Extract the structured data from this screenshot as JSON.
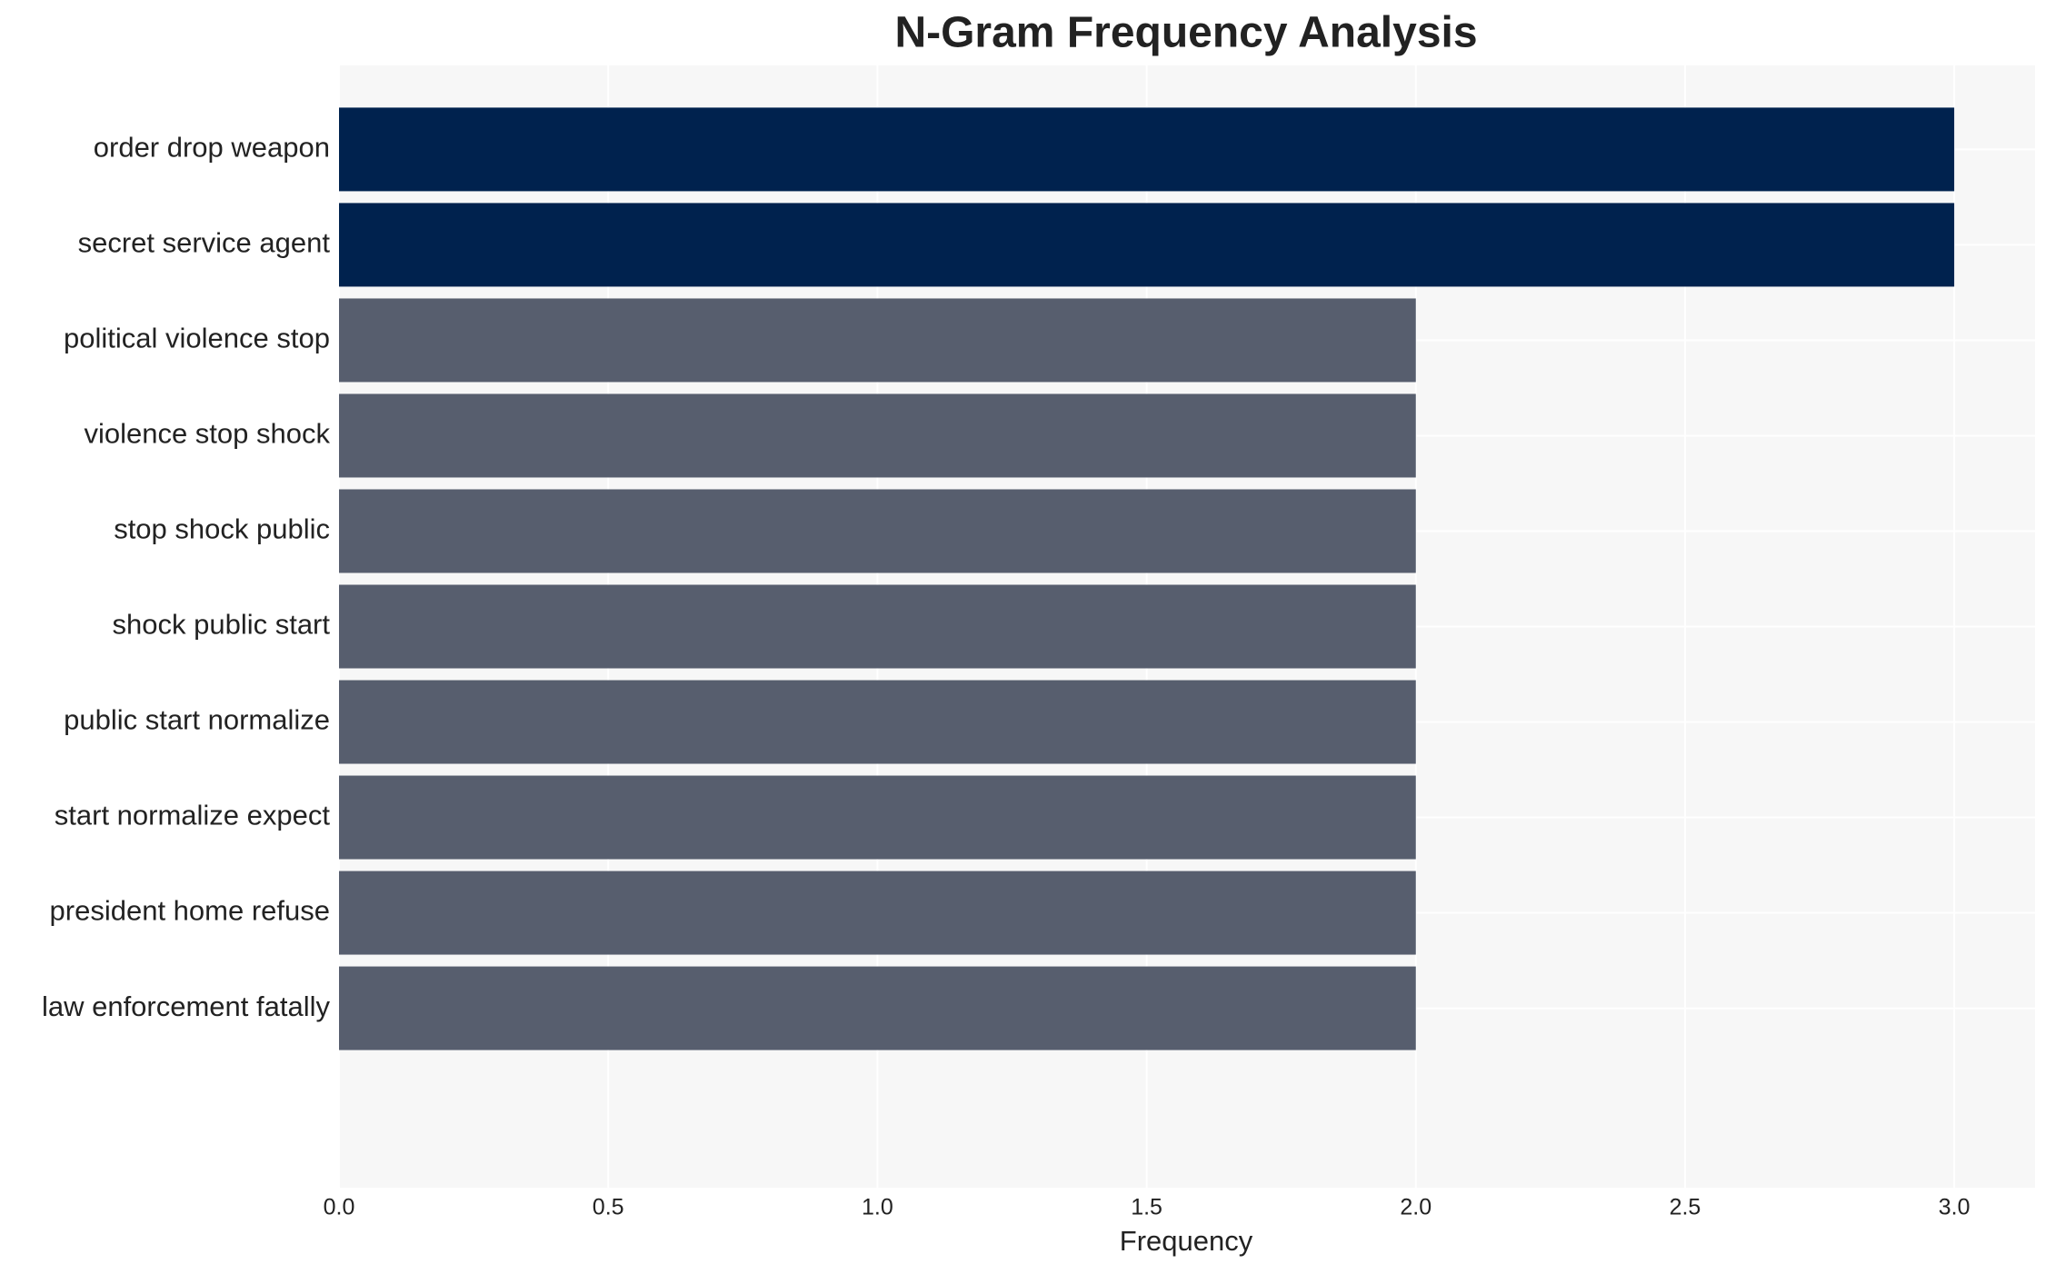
{
  "chart_data": {
    "type": "barh",
    "title": "N-Gram Frequency Analysis",
    "x_label": "Frequency",
    "categories": [
      "order drop weapon",
      "secret service agent",
      "political violence stop",
      "violence stop shock",
      "stop shock public",
      "shock public start",
      "public start normalize",
      "start normalize expect",
      "president home refuse",
      "law enforcement fatally"
    ],
    "values": [
      3,
      3,
      2,
      2,
      2,
      2,
      2,
      2,
      2,
      2
    ],
    "colors": [
      "#00224e",
      "#00224e",
      "#575e6e",
      "#575e6e",
      "#575e6e",
      "#575e6e",
      "#575e6e",
      "#575e6e",
      "#575e6e",
      "#575e6e"
    ],
    "xlim": [
      0,
      3.15
    ],
    "xticks": [
      {
        "value": 0,
        "label": "0.0"
      },
      0.5,
      {
        "value": 1,
        "label": "1.0"
      },
      1.5,
      {
        "value": 2,
        "label": "2.0"
      },
      2.5,
      {
        "value": 3,
        "label": "3.0"
      }
    ],
    "grid": true
  }
}
